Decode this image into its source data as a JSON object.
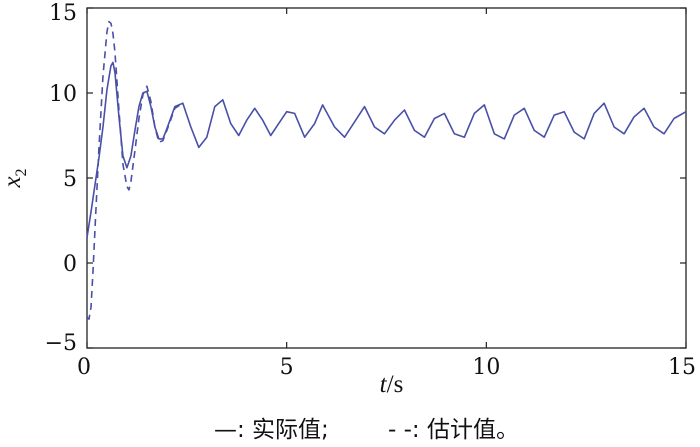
{
  "chart_data": {
    "type": "line",
    "title": "",
    "xlabel": "t",
    "xlabel_unit": "/s",
    "ylabel": "x",
    "ylabel_sub": "2",
    "xlim": [
      0,
      15
    ],
    "ylim": [
      -5,
      15
    ],
    "xticks": [
      "0",
      "5",
      "10",
      "15"
    ],
    "yticks": [
      "−5",
      "0",
      "5",
      "10",
      "15"
    ],
    "xtick_values": [
      0,
      5,
      10,
      15
    ],
    "ytick_values": [
      -5,
      0,
      5,
      10,
      15
    ],
    "grid": false,
    "line_color": "#4a4fa8",
    "series": [
      {
        "name": "实际值",
        "style": "solid",
        "x": [
          0,
          0.1,
          0.2,
          0.3,
          0.4,
          0.5,
          0.6,
          0.65,
          0.7,
          0.8,
          0.9,
          1.0,
          1.1,
          1.2,
          1.3,
          1.4,
          1.5,
          1.6,
          1.7,
          1.8,
          1.9,
          2.0,
          2.2,
          2.4,
          2.6,
          2.8,
          3.0,
          3.2,
          3.4,
          3.6,
          3.8,
          4.0,
          4.2,
          4.4,
          4.6,
          4.8,
          5.0,
          5.2,
          5.45,
          5.7,
          5.9,
          6.2,
          6.45,
          6.7,
          6.95,
          7.2,
          7.45,
          7.7,
          7.95,
          8.2,
          8.45,
          8.7,
          8.95,
          9.2,
          9.45,
          9.7,
          9.95,
          10.2,
          10.45,
          10.7,
          10.95,
          11.2,
          11.45,
          11.7,
          11.95,
          12.2,
          12.45,
          12.7,
          12.95,
          13.2,
          13.45,
          13.7,
          13.95,
          14.2,
          14.45,
          14.7,
          15.0
        ],
        "y": [
          1.5,
          3.0,
          4.6,
          6.2,
          8.0,
          10.2,
          11.6,
          11.8,
          11.2,
          8.6,
          6.3,
          5.6,
          6.3,
          7.8,
          9.2,
          10.0,
          10.1,
          9.2,
          8.0,
          7.3,
          7.3,
          7.9,
          9.2,
          9.4,
          8.0,
          6.8,
          7.4,
          9.2,
          9.6,
          8.2,
          7.5,
          8.4,
          9.1,
          8.4,
          7.5,
          8.2,
          8.9,
          8.8,
          7.4,
          8.2,
          9.3,
          8.0,
          7.4,
          8.3,
          9.2,
          8.0,
          7.6,
          8.4,
          9.0,
          7.8,
          7.4,
          8.5,
          8.8,
          7.6,
          7.4,
          8.8,
          9.3,
          7.6,
          7.3,
          8.7,
          9.1,
          7.8,
          7.4,
          8.7,
          8.9,
          7.7,
          7.3,
          8.8,
          9.4,
          8.0,
          7.6,
          8.6,
          9.1,
          8.0,
          7.6,
          8.5,
          8.9
        ]
      },
      {
        "name": "估计值",
        "style": "dashed",
        "x": [
          0,
          0.05,
          0.1,
          0.15,
          0.2,
          0.3,
          0.4,
          0.5,
          0.55,
          0.6,
          0.65,
          0.7,
          0.8,
          0.9,
          1.0,
          1.05,
          1.1,
          1.2,
          1.3,
          1.4,
          1.5,
          1.6,
          1.7,
          1.8,
          1.9,
          2.0,
          2.2,
          2.4
        ],
        "y": [
          -3.2,
          -3.3,
          -2.6,
          -0.5,
          2.0,
          6.8,
          11.0,
          13.6,
          14.2,
          14.1,
          13.5,
          12.4,
          9.0,
          5.8,
          4.5,
          4.3,
          4.8,
          6.6,
          8.5,
          9.9,
          10.4,
          9.5,
          8.0,
          7.1,
          7.2,
          7.8,
          9.1,
          9.4
        ]
      }
    ]
  },
  "legend": {
    "solid_item": "—: 实际值;",
    "dashed_item": "- -: 估计值。"
  }
}
